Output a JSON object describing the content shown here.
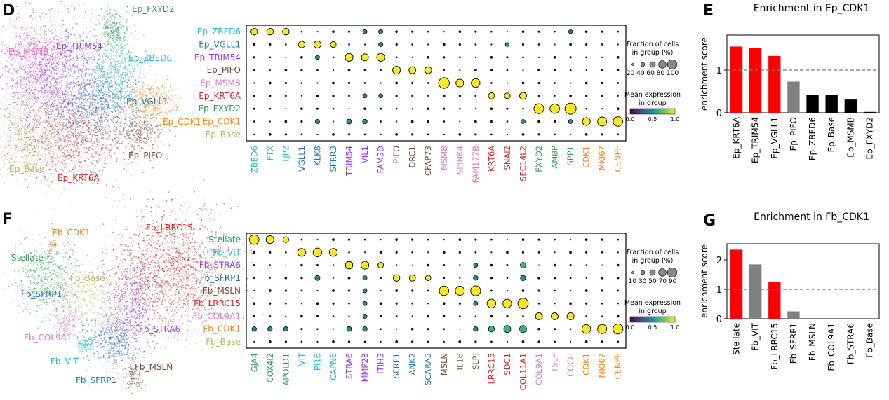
{
  "panels": {
    "D": "D",
    "E": "E",
    "F": "F",
    "G": "G"
  },
  "colors": {
    "Ep_ZBED6": "#2ab7c9",
    "Ep_VGLL1": "#1f78b4",
    "Ep_TRIM54": "#9b30e8",
    "Ep_PIFO": "#7a4a36",
    "Ep_MSMB": "#e377c2",
    "Ep_KRT6A": "#d62728",
    "Ep_FXYD2": "#2ca05a",
    "Ep_CDK1": "#ff7f0e",
    "Ep_Base": "#b5bd61",
    "Stellate": "#2ca05a",
    "Fb_VIT": "#17becf",
    "Fb_STRA6": "#9b30e8",
    "Fb_SFRP1": "#1f78b4",
    "Fb_MSLN": "#7a4a36",
    "Fb_LRRC15": "#d62728",
    "Fb_COL9A1": "#e377c2",
    "Fb_CDK1": "#ff7f0e",
    "Fb_Base": "#b5bd61",
    "dot_high": "#fde725",
    "dot_mid": "#21918c",
    "dot_low": "#3b1a6b",
    "bar_red": "#ff0000",
    "bar_gray": "#808080",
    "bar_black": "#000000"
  },
  "umap_ep": {
    "labels": [
      "Ep_FXYD2",
      "Ep_TRIM54",
      "Ep_MSMB",
      "Ep_ZBED6",
      "Ep_VGLL1",
      "Ep_CDK1",
      "Ep_PIFO",
      "Ep_Base",
      "Ep_KRT6A"
    ]
  },
  "umap_fb": {
    "labels": [
      "Fb_LRRC15",
      "Fb_CDK1",
      "Stellate",
      "Fb_Base",
      "Fb_SFRP1",
      "Fb_COL9A1",
      "Fb_STRA6",
      "Fb_VIT",
      "Fb_SFRP1",
      "Fb_MSLN"
    ]
  },
  "dotplot_ep": {
    "rows": [
      "Ep_ZBED6",
      "Ep_VGLL1",
      "Ep_TRIM54",
      "Ep_PIFO",
      "Ep_MSMB",
      "Ep_KRT6A",
      "Ep_FXYD2",
      "Ep_CDK1",
      "Ep_Base"
    ],
    "genes": [
      "ZBED6",
      "FTX",
      "TJP2",
      "VGLL1",
      "KLK8",
      "SPRR3",
      "TRIM54",
      "VIL1",
      "FAM3D",
      "PIFO",
      "DRC1",
      "CFAP73",
      "MSMB",
      "SPINK4",
      "FAM177B",
      "KRT6A",
      "SNAI2",
      "SEC14L2",
      "FXYD2",
      "AMBP",
      "SPP1",
      "CDK1",
      "MKI67",
      "CENPF"
    ],
    "gene_groups": [
      "Ep_ZBED6",
      "Ep_ZBED6",
      "Ep_ZBED6",
      "Ep_VGLL1",
      "Ep_VGLL1",
      "Ep_VGLL1",
      "Ep_TRIM54",
      "Ep_TRIM54",
      "Ep_TRIM54",
      "Ep_PIFO",
      "Ep_PIFO",
      "Ep_PIFO",
      "Ep_MSMB",
      "Ep_MSMB",
      "Ep_MSMB",
      "Ep_KRT6A",
      "Ep_KRT6A",
      "Ep_KRT6A",
      "Ep_FXYD2",
      "Ep_FXYD2",
      "Ep_FXYD2",
      "Ep_CDK1",
      "Ep_CDK1",
      "Ep_CDK1"
    ],
    "strong": [
      [
        0,
        0,
        0.45
      ],
      [
        0,
        1,
        0.45
      ],
      [
        0,
        2,
        0.45
      ],
      [
        1,
        3,
        0.45
      ],
      [
        1,
        4,
        0.5
      ],
      [
        1,
        5,
        0.35
      ],
      [
        2,
        6,
        0.6
      ],
      [
        2,
        7,
        0.5
      ],
      [
        2,
        8,
        0.6
      ],
      [
        3,
        9,
        0.6
      ],
      [
        3,
        10,
        0.5
      ],
      [
        3,
        11,
        0.5
      ],
      [
        4,
        12,
        0.95
      ],
      [
        4,
        13,
        0.6
      ],
      [
        4,
        14,
        0.7
      ],
      [
        5,
        15,
        0.4
      ],
      [
        5,
        16,
        0.35
      ],
      [
        5,
        17,
        0.5
      ],
      [
        6,
        18,
        0.85
      ],
      [
        6,
        19,
        0.8
      ],
      [
        6,
        20,
        1.0
      ],
      [
        7,
        21,
        0.6
      ],
      [
        7,
        22,
        0.75
      ],
      [
        7,
        23,
        0.8
      ]
    ],
    "mid": [
      [
        0,
        7,
        0.3
      ],
      [
        0,
        8,
        0.3
      ],
      [
        0,
        20,
        0.25
      ],
      [
        1,
        8,
        0.3
      ],
      [
        1,
        16,
        0.25
      ],
      [
        2,
        4,
        0.3
      ],
      [
        5,
        7,
        0.28
      ],
      [
        5,
        8,
        0.28
      ],
      [
        7,
        4,
        0.3
      ],
      [
        7,
        6,
        0.4
      ],
      [
        7,
        7,
        0.35
      ],
      [
        7,
        17,
        0.3
      ],
      [
        7,
        20,
        0.3
      ]
    ],
    "legend_fraction_title": "Fraction of cells\nin group (%)",
    "legend_fraction_ticks": [
      "20",
      "40",
      "60",
      "80",
      "100"
    ],
    "legend_expr_title": "Mean expression\nin group",
    "legend_expr_ticks": [
      "0.0",
      "0.5",
      "1.0"
    ]
  },
  "dotplot_fb": {
    "rows": [
      "Stellate",
      "Fb_VIT",
      "Fb_STRA6",
      "Fb_SFRP1",
      "Fb_MSLN",
      "Fb_LRRC15",
      "Fb_COL9A1",
      "Fb_CDK1",
      "Fb_Base"
    ],
    "genes": [
      "GJA4",
      "COX4I2",
      "APOLD1",
      "VIT",
      "PI16",
      "CAPN6",
      "STRA6",
      "MMP28",
      "ITIH3",
      "SFRP1",
      "ANK2",
      "SCARA5",
      "MSLN",
      "IL18",
      "SLPI",
      "LRRC15",
      "SDC1",
      "COL11A1",
      "COL9A1",
      "TSLP",
      "COCH",
      "CDK1",
      "MKI67",
      "CENPF"
    ],
    "gene_groups": [
      "Stellate",
      "Stellate",
      "Stellate",
      "Fb_VIT",
      "Fb_VIT",
      "Fb_VIT",
      "Fb_STRA6",
      "Fb_STRA6",
      "Fb_STRA6",
      "Fb_SFRP1",
      "Fb_SFRP1",
      "Fb_SFRP1",
      "Fb_MSLN",
      "Fb_MSLN",
      "Fb_MSLN",
      "Fb_LRRC15",
      "Fb_LRRC15",
      "Fb_LRRC15",
      "Fb_COL9A1",
      "Fb_COL9A1",
      "Fb_COL9A1",
      "Fb_CDK1",
      "Fb_CDK1",
      "Fb_CDK1"
    ],
    "strong": [
      [
        0,
        0,
        0.8
      ],
      [
        0,
        1,
        0.6
      ],
      [
        0,
        2,
        0.35
      ],
      [
        1,
        3,
        0.6
      ],
      [
        1,
        4,
        0.7
      ],
      [
        1,
        5,
        0.6
      ],
      [
        2,
        6,
        0.55
      ],
      [
        2,
        7,
        0.6
      ],
      [
        2,
        8,
        0.35
      ],
      [
        3,
        9,
        0.45
      ],
      [
        3,
        10,
        0.4
      ],
      [
        3,
        11,
        0.3
      ],
      [
        4,
        12,
        0.8
      ],
      [
        4,
        13,
        0.75
      ],
      [
        4,
        14,
        0.85
      ],
      [
        5,
        15,
        0.7
      ],
      [
        5,
        16,
        0.7
      ],
      [
        5,
        17,
        0.9
      ],
      [
        6,
        18,
        0.5
      ],
      [
        6,
        19,
        0.5
      ],
      [
        6,
        20,
        0.5
      ],
      [
        7,
        21,
        0.7
      ],
      [
        7,
        22,
        0.75
      ],
      [
        7,
        23,
        0.85
      ]
    ],
    "mid": [
      [
        2,
        17,
        0.5
      ],
      [
        3,
        4,
        0.4
      ],
      [
        3,
        7,
        0.3
      ],
      [
        3,
        14,
        0.35
      ],
      [
        3,
        17,
        0.45
      ],
      [
        4,
        7,
        0.3
      ],
      [
        5,
        7,
        0.3
      ],
      [
        5,
        14,
        0.3
      ],
      [
        6,
        7,
        0.3
      ],
      [
        7,
        0,
        0.35
      ],
      [
        7,
        1,
        0.35
      ],
      [
        7,
        2,
        0.35
      ],
      [
        7,
        6,
        0.4
      ],
      [
        7,
        7,
        0.35
      ],
      [
        7,
        14,
        0.35
      ],
      [
        7,
        15,
        0.55
      ],
      [
        7,
        16,
        0.7
      ],
      [
        7,
        17,
        0.7
      ],
      [
        2,
        14,
        0.3
      ]
    ],
    "legend_fraction_title": "Fraction of cells\nin group (%)",
    "legend_fraction_ticks": [
      "10",
      "30",
      "50",
      "70",
      "90"
    ],
    "legend_expr_title": "Mean expression\nin group",
    "legend_expr_ticks": [
      "0.0",
      "0.5",
      "1.0"
    ]
  },
  "chart_data": [
    {
      "type": "bar",
      "title": "Enrichment in Ep_CDK1",
      "ylabel": "enrichment score",
      "categories": [
        "Ep_KRT6A",
        "Ep_TRIM54",
        "Ep_VGLL1",
        "Ep_PIFO",
        "Ep_ZBED6",
        "Ep_Base",
        "Ep_MSMB",
        "Ep_FXYD2"
      ],
      "values": [
        1.55,
        1.52,
        1.33,
        0.73,
        0.42,
        0.41,
        0.31,
        0.02
      ],
      "bar_colors": [
        "#ff0000",
        "#ff0000",
        "#ff0000",
        "#808080",
        "#000000",
        "#000000",
        "#000000",
        "#000000"
      ],
      "ylim": [
        0,
        1.82
      ],
      "yticks": [
        0,
        1
      ],
      "reference_line": 1,
      "grid": false
    },
    {
      "type": "bar",
      "title": "Enrichment in Fb_CDK1",
      "ylabel": "enrichment score",
      "categories": [
        "Stellate",
        "Fb_VIT",
        "Fb_LRRC15",
        "Fb_SFRP1",
        "Fb_MSLN",
        "Fb_COL9A1",
        "Fb_STRA6",
        "Fb_Base"
      ],
      "values": [
        2.35,
        1.85,
        1.25,
        0.25,
        0.0,
        0.0,
        0.0,
        0.0
      ],
      "bar_colors": [
        "#ff0000",
        "#808080",
        "#ff0000",
        "#808080",
        "#808080",
        "#808080",
        "#808080",
        "#808080"
      ],
      "ylim": [
        0,
        2.55
      ],
      "yticks": [
        0,
        1,
        2
      ],
      "reference_line": 1,
      "grid": false
    }
  ]
}
